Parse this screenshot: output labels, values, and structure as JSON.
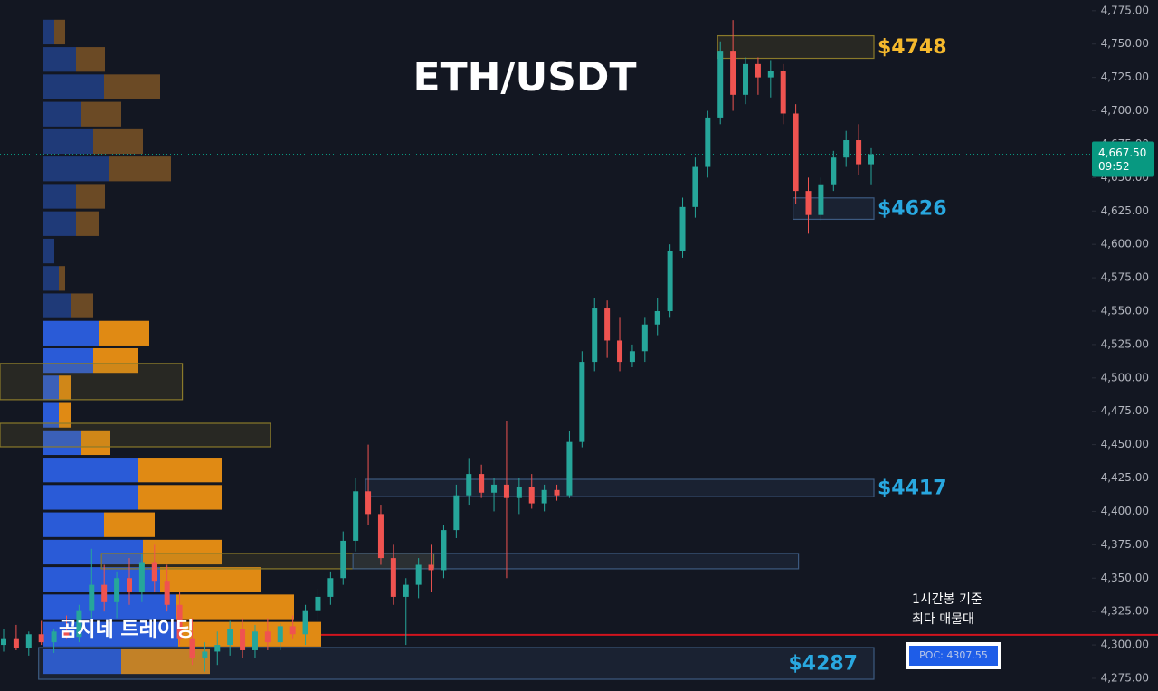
{
  "chart_data": {
    "type": "candlestick",
    "title": "ETH/USDT",
    "watermark": "곰지네 트레이딩",
    "ylim": [
      4265.5,
      4783
    ],
    "yticks": [
      {
        "value": 4275,
        "label": "4,275.00"
      },
      {
        "value": 4300,
        "label": "4,300.00"
      },
      {
        "value": 4325,
        "label": "4,325.00"
      },
      {
        "value": 4350,
        "label": "4,350.00"
      },
      {
        "value": 4375,
        "label": "4,375.00"
      },
      {
        "value": 4400,
        "label": "4,400.00"
      },
      {
        "value": 4425,
        "label": "4,425.00"
      },
      {
        "value": 4450,
        "label": "4,450.00"
      },
      {
        "value": 4475,
        "label": "4,475.00"
      },
      {
        "value": 4500,
        "label": "4,500.00"
      },
      {
        "value": 4525,
        "label": "4,525.00"
      },
      {
        "value": 4550,
        "label": "4,550.00"
      },
      {
        "value": 4575,
        "label": "4,575.00"
      },
      {
        "value": 4600,
        "label": "4,600.00"
      },
      {
        "value": 4625,
        "label": "4,625.00"
      },
      {
        "value": 4650,
        "label": "4,650.00"
      },
      {
        "value": 4675,
        "label": "4,675.00"
      },
      {
        "value": 4700,
        "label": "4,700.00"
      },
      {
        "value": 4725,
        "label": "4,725.00"
      },
      {
        "value": 4750,
        "label": "4,750.00"
      },
      {
        "value": 4775,
        "label": "4,775.00"
      }
    ],
    "up_color": "#26a69a",
    "down_color": "#ef5350",
    "open": [
      4300,
      4305,
      4298,
      4308,
      4302,
      4310,
      4306,
      4326,
      4345,
      4332,
      4350,
      4340,
      4362,
      4348,
      4330,
      4305,
      4290,
      4295,
      4300,
      4312,
      4296,
      4310,
      4302,
      4314,
      4308,
      4326,
      4336,
      4350,
      4378,
      4415,
      4398,
      4365,
      4336,
      4345,
      4360,
      4356,
      4386,
      4412,
      4428,
      4414,
      4420,
      4410,
      4418,
      4406,
      4416,
      4412,
      4452,
      4512,
      4552,
      4528,
      4512,
      4520,
      4540,
      4550,
      4595,
      4628,
      4658,
      4695,
      4745,
      4712,
      4735,
      4725,
      4730,
      4698,
      4640,
      4622,
      4645,
      4665,
      4678,
      4660
    ],
    "high": [
      4312,
      4315,
      4310,
      4318,
      4312,
      4322,
      4330,
      4372,
      4360,
      4355,
      4365,
      4368,
      4375,
      4360,
      4340,
      4320,
      4302,
      4310,
      4318,
      4320,
      4315,
      4320,
      4316,
      4322,
      4330,
      4342,
      4355,
      4385,
      4425,
      4450,
      4405,
      4375,
      4350,
      4365,
      4375,
      4390,
      4420,
      4440,
      4435,
      4425,
      4468,
      4425,
      4428,
      4420,
      4420,
      4460,
      4520,
      4560,
      4558,
      4545,
      4525,
      4545,
      4560,
      4600,
      4635,
      4665,
      4700,
      4752,
      4768,
      4740,
      4740,
      4738,
      4735,
      4705,
      4650,
      4650,
      4670,
      4685,
      4690,
      4672
    ],
    "low": [
      4295,
      4296,
      4292,
      4300,
      4294,
      4305,
      4302,
      4320,
      4325,
      4320,
      4330,
      4332,
      4340,
      4325,
      4300,
      4285,
      4280,
      4285,
      4292,
      4290,
      4290,
      4296,
      4296,
      4305,
      4300,
      4318,
      4330,
      4345,
      4370,
      4390,
      4360,
      4330,
      4300,
      4335,
      4340,
      4350,
      4380,
      4405,
      4410,
      4400,
      4350,
      4398,
      4402,
      4400,
      4408,
      4410,
      4448,
      4505,
      4515,
      4505,
      4508,
      4512,
      4532,
      4545,
      4590,
      4620,
      4650,
      4690,
      4700,
      4705,
      4712,
      4710,
      4690,
      4630,
      4608,
      4618,
      4640,
      4658,
      4652,
      4645
    ],
    "close": [
      4305,
      4298,
      4308,
      4302,
      4310,
      4306,
      4326,
      4345,
      4332,
      4350,
      4340,
      4362,
      4348,
      4330,
      4305,
      4290,
      4295,
      4300,
      4312,
      4296,
      4310,
      4302,
      4314,
      4308,
      4326,
      4336,
      4350,
      4378,
      4415,
      4398,
      4365,
      4336,
      4345,
      4360,
      4356,
      4386,
      4412,
      4428,
      4414,
      4420,
      4410,
      4418,
      4406,
      4416,
      4412,
      4452,
      4512,
      4552,
      4528,
      4512,
      4520,
      4540,
      4550,
      4595,
      4628,
      4658,
      4695,
      4745,
      4712,
      4735,
      4725,
      4730,
      4698,
      4640,
      4622,
      4645,
      4665,
      4678,
      4660,
      4667.5
    ],
    "profile": {
      "prices": [
        4287.5,
        4308,
        4328.5,
        4349,
        4369.5,
        4390,
        4410.5,
        4431,
        4451.5,
        4472,
        4492.5,
        4513,
        4533.5,
        4554,
        4574.5,
        4595,
        4615.5,
        4636,
        4656.5,
        4677,
        4697.5,
        4718,
        4738.5,
        4759
      ],
      "buy": [
        87,
        150,
        148,
        130,
        111,
        68,
        105,
        105,
        43,
        18,
        18,
        56,
        62,
        31,
        18,
        13,
        37,
        37,
        74,
        56,
        43,
        68,
        37,
        13
      ],
      "sell": [
        98,
        158,
        130,
        111,
        87,
        56,
        93,
        93,
        32,
        13,
        13,
        49,
        56,
        25,
        7,
        0,
        25,
        32,
        68,
        55,
        44,
        62,
        32,
        12
      ],
      "in_value_area": [
        true,
        true,
        true,
        true,
        true,
        true,
        true,
        true,
        true,
        true,
        true,
        true,
        true,
        false,
        false,
        false,
        false,
        false,
        false,
        false,
        false,
        false,
        false,
        false
      ],
      "buy_color": "#2a5bd7",
      "sell_color": "#e08a14",
      "dim_buy_color": "#1f3a78",
      "dim_sell_color": "#6b4a25"
    },
    "zones": [
      {
        "label": "$4748",
        "top": 4756.2,
        "bottom": 4739.3,
        "start": 57,
        "end": 69,
        "color": "#f5b92d",
        "border": "#8a7a2a"
      },
      {
        "label": "$4626",
        "top": 4634.8,
        "bottom": 4618.8,
        "start": 63,
        "end": 69,
        "color": "#29a8e0",
        "border": "#3d5a80"
      },
      {
        "label": "$4417",
        "top": 4424,
        "bottom": 4411,
        "start": 29,
        "end": 69,
        "color": "#29a8e0",
        "border": "#3d5a80"
      },
      {
        "label": "$4287",
        "top": 4298,
        "bottom": 4274.3,
        "start": 3,
        "end": 69,
        "color": "#29a8e0",
        "border": "#3d5a80"
      },
      {
        "top": 4510.8,
        "bottom": 4483.7,
        "start": 0,
        "end": 14,
        "border": "#8a7a2a"
      },
      {
        "top": 4466,
        "bottom": 4448.4,
        "start": 0,
        "end": 21,
        "border": "#8a7a2a"
      },
      {
        "top": 4368.5,
        "bottom": 4357,
        "start": 8,
        "end": 34,
        "border": "#8a7a2a"
      },
      {
        "top": 4368.5,
        "bottom": 4357,
        "start": 28,
        "end": 63,
        "border": "#3d5a80"
      }
    ],
    "poc": {
      "value": 4307.55,
      "label": "POC: 4307.55",
      "note": [
        "1시간봉 기준",
        "최다 매물대"
      ],
      "color": "#d0141e"
    },
    "last_price": {
      "value": 4667.5,
      "label": "4,667.50",
      "countdown": "09:52",
      "color": "#089981"
    }
  }
}
